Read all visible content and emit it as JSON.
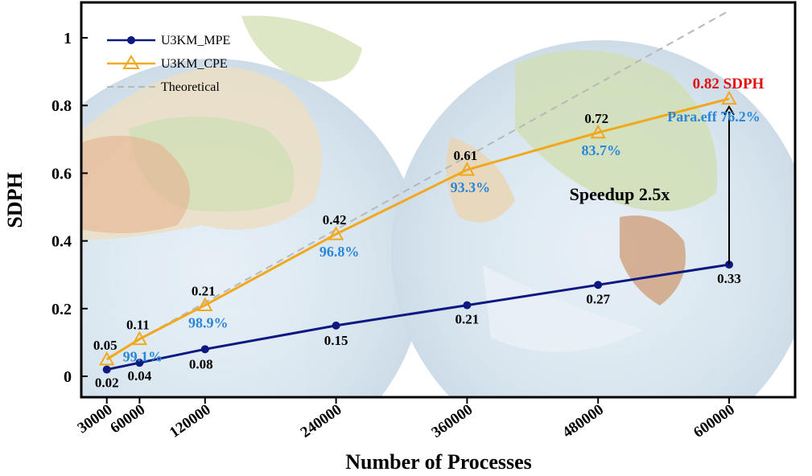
{
  "chart_data": {
    "type": "line",
    "title": "",
    "xlabel": "Number of Processes",
    "ylabel": "SDPH",
    "x": [
      30000,
      60000,
      120000,
      240000,
      360000,
      480000,
      600000
    ],
    "x_tick_labels": [
      "30000",
      "60000",
      "120000",
      "240000",
      "360000",
      "480000",
      "600000"
    ],
    "ylim": [
      0,
      1.1
    ],
    "y_ticks": [
      0,
      0.2,
      0.4,
      0.6,
      0.8,
      1
    ],
    "y_tick_labels": [
      "0",
      "0.2",
      "0.4",
      "0.6",
      "0.8",
      "1"
    ],
    "grid": false,
    "legend": "top-left",
    "series": [
      {
        "name": "U3KM_MPE",
        "color": "#0d1880",
        "marker": "circle",
        "values": [
          0.02,
          0.04,
          0.08,
          0.15,
          0.21,
          0.27,
          0.33
        ],
        "labels": [
          "0.02",
          "0.04",
          "0.08",
          "0.15",
          "0.21",
          "0.27",
          "0.33"
        ]
      },
      {
        "name": "U3KM_CPE",
        "color": "#f2a81c",
        "marker": "triangle",
        "values": [
          0.05,
          0.11,
          0.21,
          0.42,
          0.61,
          0.72,
          0.82
        ],
        "labels": [
          "0.05",
          "0.11",
          "0.21",
          "0.42",
          "0.61",
          "0.72",
          ""
        ]
      },
      {
        "name": "Theoretical",
        "color": "#b8b8b8",
        "dashed": true,
        "x": [
          60000,
          600000
        ],
        "values": [
          0.11,
          1.08
        ]
      }
    ],
    "efficiency_labels": {
      "color": "#2a86d8",
      "x": [
        60000,
        120000,
        240000,
        360000,
        480000
      ],
      "values": [
        "99.1%",
        "98.9%",
        "96.8%",
        "93.3%",
        "83.7%"
      ]
    },
    "annotations": {
      "peak_label": "0.82 SDPH",
      "peak_color": "#e01010",
      "para_eff": "Para.eff 76.2%",
      "speedup": "Speedup 2.5x"
    },
    "background": "two globe images"
  }
}
